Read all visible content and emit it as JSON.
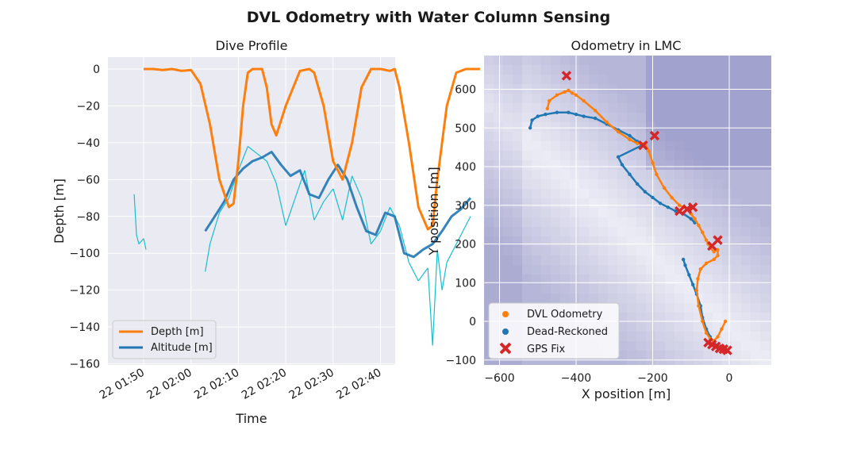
{
  "figure": {
    "title": "DVL Odometry with Water Column Sensing"
  },
  "chart_data": [
    {
      "type": "line",
      "title": "Dive Profile",
      "xlabel": "Time",
      "ylabel": "Depth [m]",
      "x_tick_labels": [
        "22 01:50",
        "22 02:00",
        "22 02:10",
        "22 02:20",
        "22 02:30",
        "22 02:40"
      ],
      "y_ticks": [
        0,
        -20,
        -40,
        -60,
        -80,
        -100,
        -120,
        -140,
        -160
      ],
      "x_range_minutes": [
        "01:43",
        "02:44"
      ],
      "ylim": [
        -160,
        6
      ],
      "grid": true,
      "legend": "lower-left",
      "series": [
        {
          "name": "Depth [m]",
          "color": "#ff7f0e",
          "x_minutes_since_0150": [
            0,
            2,
            4,
            6,
            8,
            10,
            12,
            14,
            16,
            18,
            19,
            20,
            21,
            22,
            23,
            24,
            25,
            26,
            27,
            28,
            30,
            33,
            35,
            36,
            38,
            40,
            42,
            44,
            46,
            48,
            50,
            52,
            53,
            54,
            56,
            58,
            60,
            61,
            62,
            64,
            66,
            68,
            69,
            70,
            71
          ],
          "y": [
            0,
            0,
            -0.5,
            0,
            -1,
            -0.5,
            -8,
            -30,
            -60,
            -75,
            -73,
            -50,
            -20,
            -2,
            0,
            0,
            0,
            -10,
            -30,
            -36,
            -20,
            -1,
            0,
            -2,
            -20,
            -50,
            -60,
            -40,
            -10,
            0,
            0,
            -1,
            0,
            -10,
            -40,
            -75,
            -87,
            -85,
            -60,
            -20,
            -2,
            0,
            0,
            0,
            0
          ]
        },
        {
          "name": "Altitude [m]",
          "color": "#1f77b4",
          "x_minutes_since_0150": [
            13,
            15,
            17,
            19,
            21,
            23,
            25,
            27,
            29,
            31,
            33,
            35,
            37,
            39,
            41,
            43,
            45,
            47,
            49,
            51,
            53,
            55,
            57,
            59,
            61,
            63,
            65,
            67,
            69
          ],
          "y": [
            -88,
            -80,
            -72,
            -60,
            -54,
            -50,
            -48,
            -45,
            -52,
            -58,
            -55,
            -68,
            -70,
            -60,
            -52,
            -60,
            -75,
            -88,
            -90,
            -78,
            -80,
            -100,
            -102,
            -98,
            -95,
            -88,
            -80,
            -76,
            -70
          ]
        },
        {
          "name": "",
          "color": "#17becf",
          "x_minutes_since_0150": [
            -2,
            -1.5,
            -1,
            0,
            0.5,
            13,
            14,
            16,
            18,
            20,
            22,
            24,
            26,
            28,
            30,
            32,
            34,
            36,
            38,
            40,
            42,
            44,
            46,
            48,
            50,
            52,
            54,
            56,
            58,
            60,
            61,
            62,
            63,
            64,
            66,
            68,
            69
          ],
          "y": [
            -68,
            -90,
            -95,
            -92,
            -98,
            -110,
            -95,
            -78,
            -70,
            -55,
            -42,
            -46,
            -50,
            -62,
            -85,
            -70,
            -55,
            -82,
            -72,
            -65,
            -82,
            -58,
            -70,
            -95,
            -88,
            -75,
            -85,
            -105,
            -115,
            -108,
            -150,
            -98,
            -120,
            -105,
            -95,
            -85,
            -80
          ]
        }
      ]
    },
    {
      "type": "scatter",
      "title": "Odometry in LMC",
      "xlabel": "X position [m]",
      "ylabel": "Y position [m]",
      "x_ticks": [
        -600,
        -400,
        -200,
        0
      ],
      "y_ticks": [
        600,
        500,
        400,
        300,
        200,
        100,
        0,
        -100
      ],
      "xlim": [
        -640,
        110
      ],
      "ylim": [
        -115,
        690
      ],
      "grid": true,
      "legend": "lower-left",
      "series": [
        {
          "name": "DVL Odometry",
          "color": "#ff7f0e",
          "x": [
            -475,
            -470,
            -450,
            -430,
            -420,
            -410,
            -400,
            -380,
            -350,
            -320,
            -290,
            -260,
            -240,
            -220,
            -210,
            -200,
            -190,
            -170,
            -150,
            -130,
            -110,
            -100,
            -90,
            -80,
            -70,
            -60,
            -55,
            -50,
            -40,
            -30,
            -30,
            -40,
            -60,
            -75,
            -82,
            -85,
            -80,
            -70,
            -60,
            -50,
            -40,
            -30,
            -20,
            -10
          ],
          "y": [
            550,
            570,
            585,
            593,
            597,
            590,
            585,
            570,
            545,
            515,
            490,
            470,
            460,
            460,
            440,
            410,
            380,
            345,
            320,
            300,
            290,
            278,
            265,
            248,
            230,
            210,
            200,
            190,
            180,
            185,
            170,
            160,
            150,
            135,
            110,
            80,
            40,
            0,
            -30,
            -45,
            -50,
            -40,
            -20,
            0
          ]
        },
        {
          "name": "Dead-Reckoned",
          "color": "#1f77b4",
          "x": [
            -520,
            -515,
            -500,
            -480,
            -450,
            -420,
            -400,
            -380,
            -350,
            -320,
            -290,
            -260,
            -240,
            -228,
            -290,
            -280,
            -260,
            -240,
            -220,
            -200,
            -180,
            -160,
            -140,
            -120,
            -100,
            -90,
            -120,
            -115,
            -105,
            -95,
            -85,
            -75,
            -70,
            -60,
            -50,
            -40,
            -30
          ],
          "y": [
            500,
            520,
            530,
            535,
            540,
            540,
            535,
            530,
            525,
            510,
            495,
            480,
            465,
            455,
            425,
            405,
            380,
            355,
            335,
            320,
            305,
            295,
            285,
            278,
            265,
            255,
            160,
            145,
            120,
            95,
            70,
            40,
            10,
            -20,
            -40,
            -55,
            -65
          ]
        },
        {
          "name": "GPS Fix",
          "color": "#d62728",
          "x": [
            -425,
            -225,
            -195,
            -130,
            -110,
            -95,
            -45,
            -30,
            -55,
            -45,
            -35,
            -25,
            -15,
            -5
          ],
          "y": [
            635,
            455,
            480,
            285,
            290,
            295,
            195,
            210,
            -55,
            -60,
            -65,
            -70,
            -72,
            -75
          ]
        }
      ]
    }
  ],
  "legend_left": {
    "depth_label": "Depth [m]",
    "altitude_label": "Altitude [m]"
  },
  "legend_right": {
    "dvl_label": "DVL Odometry",
    "dr_label": "Dead-Reckoned",
    "gps_label": "GPS Fix"
  },
  "colors": {
    "axes_bg": "#eaeaf2",
    "grid": "#ffffff",
    "depth": "#ff7f0e",
    "altitude": "#1f77b4",
    "altitude_raw": "#17becf",
    "gps": "#d62728",
    "heatmap": "#6b6bb0"
  }
}
